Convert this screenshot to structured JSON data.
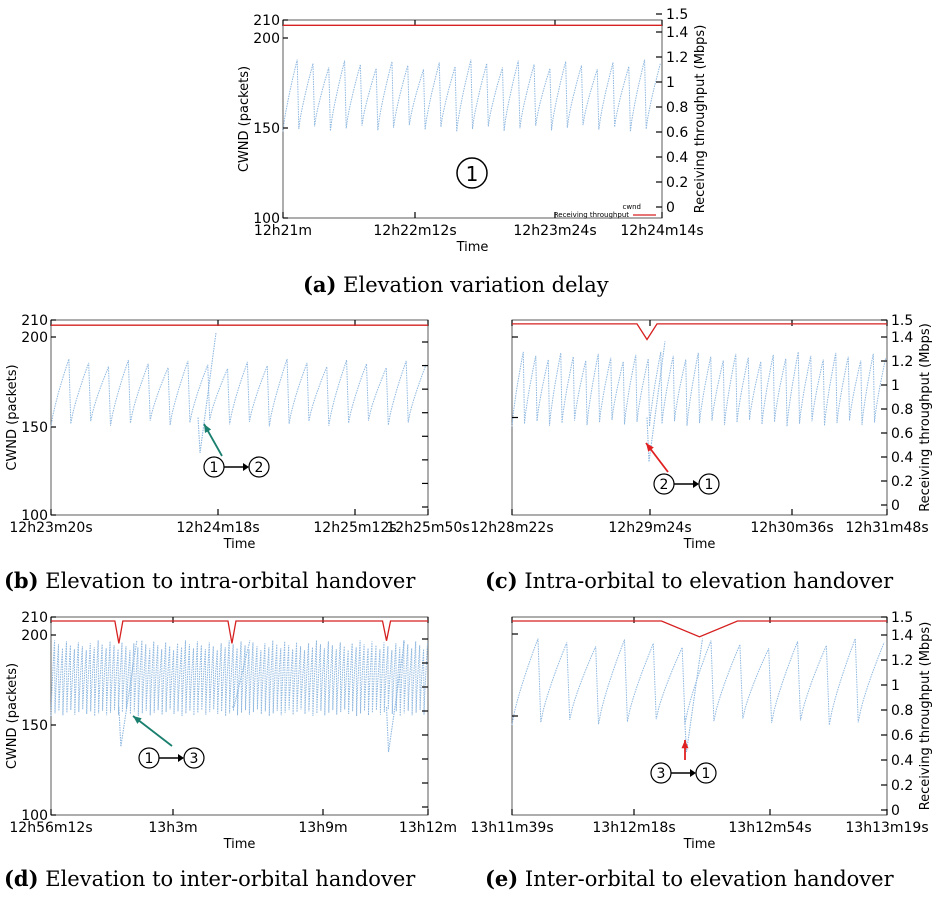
{
  "charts": [
    {
      "id": "a",
      "caption_tag": "(a)",
      "caption_text": "Elevation variation delay",
      "xlabel": "Time",
      "ylabel_left": "CWND (packets)",
      "ylabel_right": "Receiving throughput (Mbps)",
      "x_ticks": [
        "12h21m",
        "12h22m12s",
        "12h23m24s",
        "12h24m14s"
      ],
      "y_ticks_left": [
        "210",
        "200",
        "150",
        "100"
      ],
      "y_ticks_right": [
        "1.5",
        "1.4",
        "1.2",
        "1",
        "0.8",
        "0.6",
        "0.4",
        "0.2",
        "0"
      ],
      "legend": [
        "cwnd",
        "Receiving throughput"
      ],
      "annotation_circles": [
        "1"
      ],
      "annotation_from": "",
      "annotation_to": ""
    },
    {
      "id": "b",
      "caption_tag": "(b)",
      "caption_text": "Elevation to intra-orbital handover",
      "xlabel": "Time",
      "ylabel_left": "CWND (packets)",
      "ylabel_right": "",
      "x_ticks": [
        "12h23m20s",
        "12h24m18s",
        "12h25m12s",
        "12h25m50s"
      ],
      "y_ticks_left": [
        "210",
        "200",
        "150",
        "100"
      ],
      "y_ticks_right": [],
      "legend": [],
      "annotation_from": "1",
      "annotation_to": "2"
    },
    {
      "id": "c",
      "caption_tag": "(c)",
      "caption_text": "Intra-orbital to elevation handover",
      "xlabel": "Time",
      "ylabel_left": "",
      "ylabel_right": "Receiving throughput (Mbps)",
      "x_ticks": [
        "12h28m22s",
        "12h29m24s",
        "12h30m36s",
        "12h31m48s"
      ],
      "y_ticks_left": [],
      "y_ticks_right": [
        "1.5",
        "1.4",
        "1.2",
        "1",
        "0.8",
        "0.6",
        "0.4",
        "0.2",
        "0"
      ],
      "legend": [],
      "annotation_from": "2",
      "annotation_to": "1"
    },
    {
      "id": "d",
      "caption_tag": "(d)",
      "caption_text": "Elevation to inter-orbital handover",
      "xlabel": "Time",
      "ylabel_left": "CWND (packets)",
      "ylabel_right": "",
      "x_ticks": [
        "12h56m12s",
        "13h3m",
        "13h9m",
        "13h12m"
      ],
      "y_ticks_left": [
        "210",
        "200",
        "150",
        "100"
      ],
      "y_ticks_right": [],
      "legend": [],
      "annotation_from": "1",
      "annotation_to": "3"
    },
    {
      "id": "e",
      "caption_tag": "(e)",
      "caption_text": "Inter-orbital to elevation handover",
      "xlabel": "Time",
      "ylabel_left": "",
      "ylabel_right": "Receiving throughput (Mbps)",
      "x_ticks": [
        "13h11m39s",
        "13h12m18s",
        "13h12m54s",
        "13h13m19s"
      ],
      "y_ticks_left": [],
      "y_ticks_right": [
        "1.5",
        "1.4",
        "1.2",
        "1",
        "0.8",
        "0.6",
        "0.4",
        "0.2",
        "0"
      ],
      "legend": [],
      "annotation_from": "3",
      "annotation_to": "1"
    }
  ],
  "chart_data": [
    {
      "type": "line",
      "panel": "a",
      "ylim_left": [
        100,
        210
      ],
      "ylim_right": [
        0,
        1.5
      ],
      "series": [
        {
          "name": "cwnd",
          "axis": "left",
          "color": "#8fb8e0",
          "sawtooth_cycles": 24,
          "min": 148,
          "max": 188
        },
        {
          "name": "Receiving throughput",
          "axis": "right",
          "color": "#d62020",
          "values": [
            1.46,
            1.46
          ]
        }
      ]
    },
    {
      "type": "line",
      "panel": "b",
      "ylim_left": [
        100,
        210
      ],
      "ylim_right": [
        0,
        1.5
      ],
      "series": [
        {
          "axis": "left",
          "color": "#8fb8e0",
          "sawtooth_cycles": 19,
          "min": 150,
          "max": 188,
          "dip_at_fraction": 0.39,
          "dip_value": 135,
          "peak_after_dip": 203
        },
        {
          "axis": "right",
          "color": "#d62020",
          "values": [
            1.46,
            1.46
          ]
        }
      ]
    },
    {
      "type": "line",
      "panel": "c",
      "ylim_left": [
        100,
        210
      ],
      "ylim_right": [
        0,
        1.5
      ],
      "series": [
        {
          "axis": "left",
          "color": "#8fb8e0",
          "sawtooth_cycles": 30,
          "min": 150,
          "max": 192,
          "dip_at_fraction": 0.36,
          "dip_value": 130,
          "peak_after_dip": 198
        },
        {
          "axis": "right",
          "color": "#d62020",
          "values": [
            1.47,
            1.47
          ],
          "dip_at_fraction": 0.36,
          "dip_value": 1.35
        }
      ]
    },
    {
      "type": "line",
      "panel": "d",
      "ylim_left": [
        100,
        210
      ],
      "ylim_right": [
        0,
        1.5
      ],
      "series": [
        {
          "axis": "left",
          "color": "#8fb8e0",
          "sawtooth_cycles": 95,
          "min": 155,
          "max": 197,
          "dips_at_fraction": [
            0.18,
            0.48,
            0.89
          ],
          "dip_values": [
            138,
            160,
            135
          ]
        },
        {
          "axis": "right",
          "color": "#d62020",
          "values": [
            1.47,
            1.47
          ],
          "dips_at_fraction": [
            0.18,
            0.48,
            0.89
          ],
          "dip_values": [
            1.3,
            1.3,
            1.32
          ]
        }
      ]
    },
    {
      "type": "line",
      "panel": "e",
      "ylim_left": [
        100,
        210
      ],
      "ylim_right": [
        0,
        1.5
      ],
      "series": [
        {
          "axis": "left",
          "color": "#8fb8e0",
          "sawtooth_cycles": 13,
          "min": 150,
          "max": 198,
          "dip_at_fraction": 0.46,
          "dip_value": 135
        },
        {
          "axis": "right",
          "color": "#d62020",
          "values": [
            1.47,
            1.47
          ],
          "dip_at_fraction": 0.5,
          "dip_value": 1.35
        }
      ]
    }
  ]
}
